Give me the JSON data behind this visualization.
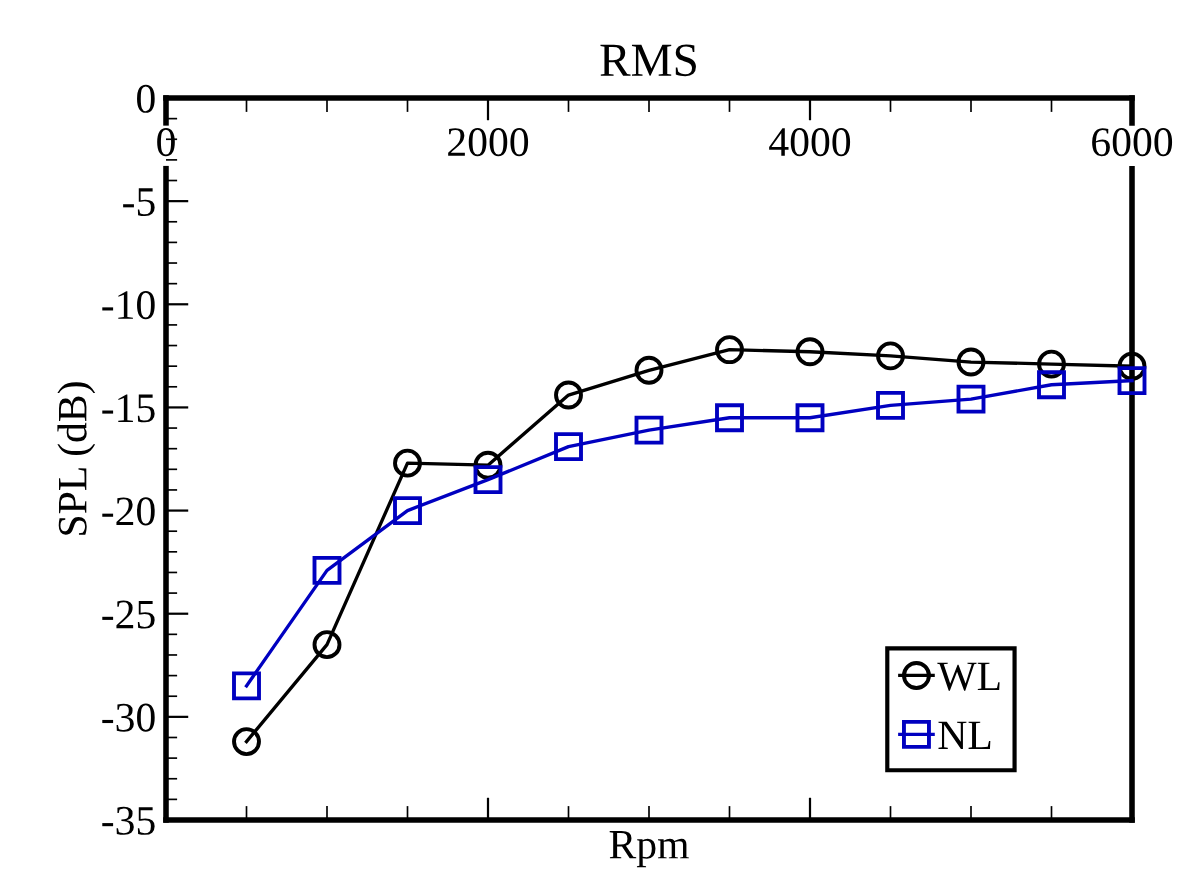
{
  "chart_data": {
    "type": "line",
    "title": "RMS",
    "xlabel": "Rpm",
    "ylabel": "SPL (dB)",
    "x": [
      500,
      1000,
      1500,
      2000,
      2500,
      3000,
      3500,
      4000,
      4500,
      5000,
      5500,
      6000
    ],
    "series": [
      {
        "name": "WL",
        "color": "#000000",
        "marker": "circle",
        "values": [
          -31.2,
          -26.5,
          -17.7,
          -17.8,
          -14.4,
          -13.2,
          -12.2,
          -12.3,
          -12.5,
          -12.8,
          -12.9,
          -13.0
        ]
      },
      {
        "name": "NL",
        "color": "#0000c0",
        "marker": "square",
        "values": [
          -28.5,
          -22.9,
          -20.0,
          -18.5,
          -16.9,
          -16.1,
          -15.5,
          -15.5,
          -14.9,
          -14.6,
          -13.9,
          -13.7
        ]
      }
    ],
    "xlim": [
      0,
      6000
    ],
    "xticks": [
      0,
      2000,
      4000,
      6000
    ],
    "ylim": [
      -35,
      0
    ],
    "yticks": [
      -35,
      -30,
      -25,
      -20,
      -15,
      -10,
      -5,
      0
    ],
    "legend": "bottom right",
    "grid": false,
    "line_style": "solid"
  }
}
